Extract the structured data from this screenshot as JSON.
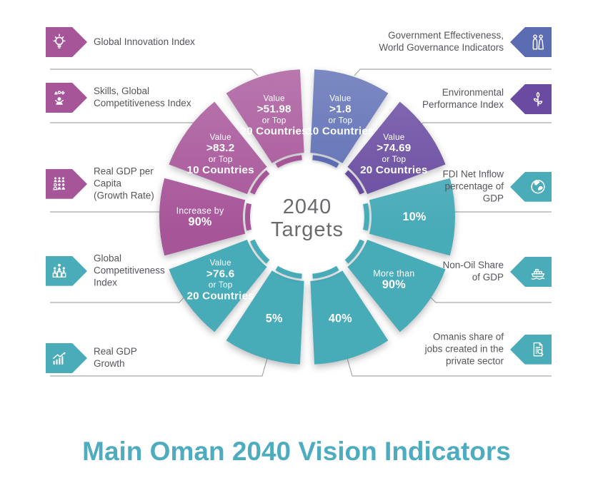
{
  "title": "Main Oman 2040 Vision Indicators",
  "center": {
    "line1": "2040",
    "line2": "Targets"
  },
  "colors": {
    "magenta": "#a75599",
    "teal": "#48abb8",
    "blue": "#5b6cb3",
    "purple": "#684aa0",
    "icon_teal": "#4aacb8",
    "icon_blue": "#5b6cb3",
    "icon_purple": "#6b4aa2",
    "title_teal": "#4eacc0",
    "label_text": "#55565a",
    "connector_line": "#a9a9a9",
    "center_text": "#6a6b6e"
  },
  "left_labels": [
    {
      "label": "Global Innovation Index",
      "icon": "lightbulb-icon",
      "color": "magenta"
    },
    {
      "label": "Skills, Global\nCompetitiveness Index",
      "icon": "skills-person-icon",
      "color": "magenta"
    },
    {
      "label": "Real GDP per\nCapita\n(Growth Rate)",
      "icon": "people-group-icon",
      "color": "magenta"
    },
    {
      "label": "Global\nCompetitiveness\nIndex",
      "icon": "podium-people-icon",
      "color": "teal"
    },
    {
      "label": "Real GDP\nGrowth",
      "icon": "growth-chart-icon",
      "color": "teal"
    }
  ],
  "right_labels": [
    {
      "label": "Government Effectiveness,\nWorld Governance Indicators",
      "icon": "citizens-icon",
      "color": "blue"
    },
    {
      "label": "Environmental\nPerformance Index",
      "icon": "plant-icon",
      "color": "purple"
    },
    {
      "label": "FDI Net Inflow\npercentage of\nGDP",
      "icon": "globe-icon",
      "color": "teal"
    },
    {
      "label": "Non-Oil Share\nof GDP",
      "icon": "ship-icon",
      "color": "teal"
    },
    {
      "label": "Omanis share of\njobs created in the\nprivate sector",
      "icon": "document-search-icon",
      "color": "teal"
    }
  ],
  "chart_data": {
    "type": "pie",
    "title": "2040 Targets",
    "layout": "donut ring of 10 equal segments (36 deg each), clockwise from 12 o'clock, with inner thin color-matched ring",
    "segments": [
      {
        "indicator": "Government Effectiveness, World Governance Indicators",
        "target": "Value >1.8 or Top 10 Countries",
        "color": "blue",
        "angle_deg": 36,
        "label_lines": [
          {
            "t": "Value",
            "b": false
          },
          {
            "t": ">1.8",
            "b": true
          },
          {
            "t": "or Top",
            "b": false
          },
          {
            "t": "10 Countries",
            "b": true
          }
        ]
      },
      {
        "indicator": "Environmental Performance Index",
        "target": "Value >74.69 or Top 20 Countries",
        "color": "purple",
        "angle_deg": 36,
        "label_lines": [
          {
            "t": "Value",
            "b": false
          },
          {
            "t": ">74.69",
            "b": true
          },
          {
            "t": "or Top",
            "b": false
          },
          {
            "t": "20 Countries",
            "b": true
          }
        ]
      },
      {
        "indicator": "FDI Net Inflow percentage of GDP",
        "target": "10%",
        "color": "teal",
        "angle_deg": 36,
        "label_lines": [
          {
            "t": "10%",
            "b": true
          }
        ]
      },
      {
        "indicator": "Non-Oil Share of GDP",
        "target": "More than 90%",
        "color": "teal",
        "angle_deg": 36,
        "label_lines": [
          {
            "t": "More than",
            "b": false
          },
          {
            "t": "90%",
            "b": true
          }
        ]
      },
      {
        "indicator": "Omanis share of jobs created in the private sector",
        "target": "40%",
        "color": "teal",
        "angle_deg": 36,
        "label_lines": [
          {
            "t": "40%",
            "b": true
          }
        ]
      },
      {
        "indicator": "Real GDP Growth",
        "target": "5%",
        "color": "teal",
        "angle_deg": 36,
        "label_lines": [
          {
            "t": "5%",
            "b": true
          }
        ]
      },
      {
        "indicator": "Global Competitiveness Index",
        "target": "Value >76.6 or Top 20 Countries",
        "color": "teal",
        "angle_deg": 36,
        "label_lines": [
          {
            "t": "Value",
            "b": false
          },
          {
            "t": ">76.6",
            "b": true
          },
          {
            "t": "or Top",
            "b": false
          },
          {
            "t": "20 Countries",
            "b": true
          }
        ]
      },
      {
        "indicator": "Real GDP per Capita (Growth Rate)",
        "target": "Increase by 90%",
        "color": "magenta",
        "angle_deg": 36,
        "label_lines": [
          {
            "t": "Increase by",
            "b": false
          },
          {
            "t": "90%",
            "b": true
          }
        ]
      },
      {
        "indicator": "Skills, Global Competitiveness Index",
        "target": "Value >83.2 or Top 10 Countries",
        "color": "magenta",
        "angle_deg": 36,
        "label_lines": [
          {
            "t": "Value",
            "b": false
          },
          {
            "t": ">83.2",
            "b": true
          },
          {
            "t": "or Top",
            "b": false
          },
          {
            "t": "10 Countries",
            "b": true
          }
        ]
      },
      {
        "indicator": "Global Innovation Index",
        "target": "Value >51.98 or Top 20 Countries",
        "color": "magenta",
        "angle_deg": 36,
        "label_lines": [
          {
            "t": "Value",
            "b": false
          },
          {
            "t": ">51.98",
            "b": true
          },
          {
            "t": "or Top",
            "b": false
          },
          {
            "t": "20 Countries",
            "b": true
          }
        ]
      }
    ]
  }
}
